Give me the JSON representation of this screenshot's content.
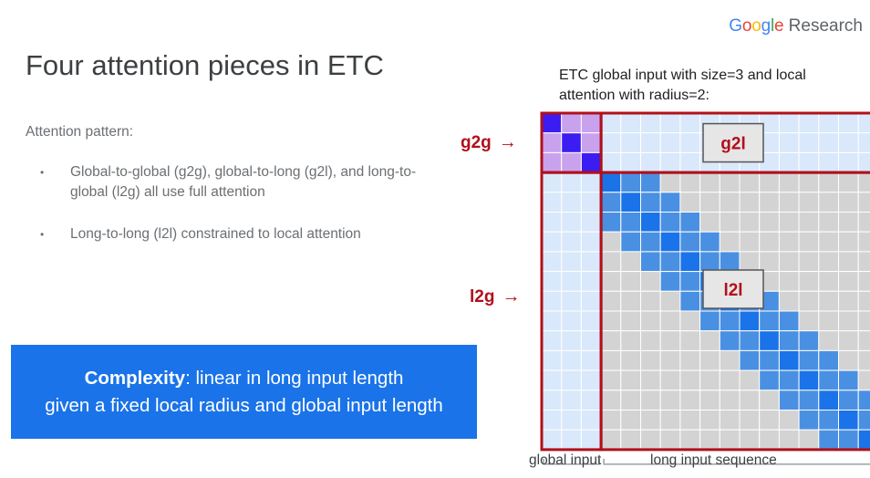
{
  "logo": {
    "google": [
      "G",
      "o",
      "o",
      "g",
      "l",
      "e"
    ],
    "google_colors": [
      "#4285F4",
      "#EA4335",
      "#FBBC05",
      "#4285F4",
      "#34A853",
      "#EA4335"
    ],
    "research": "Research"
  },
  "title": "Four attention pieces in ETC",
  "attention_label": "Attention pattern:",
  "bullets": [
    {
      "text": "Global-to-global (g2g), global-to-long (g2l), and long-to-global (l2g) all use full attention"
    },
    {
      "text": "Long-to-long (l2l) constrained to local attention"
    }
  ],
  "complexity": {
    "bold": "Complexity",
    "rest": ": linear in long input length",
    "line2": "given a fixed local radius and global input length"
  },
  "figure": {
    "caption": "ETC global input with size=3 and local attention with radius=2:",
    "global_size": 3,
    "local_radius": 2,
    "long_length": 14,
    "labels": {
      "g2g": "g2g",
      "l2g": "l2g",
      "g2l": "g2l",
      "l2l": "l2l"
    },
    "axis": {
      "global_input": "global input",
      "long_input": "long input sequence"
    },
    "colors": {
      "global_cell": "#d9e8fb",
      "g2g_cell": "#c9a2ee",
      "g2g_diag": "#3b1df2",
      "l2l_cell": "#d3d3d3",
      "l2l_band": "#4a90e2",
      "l2l_diag": "#1a73e8",
      "frame": "#b0101a"
    }
  }
}
